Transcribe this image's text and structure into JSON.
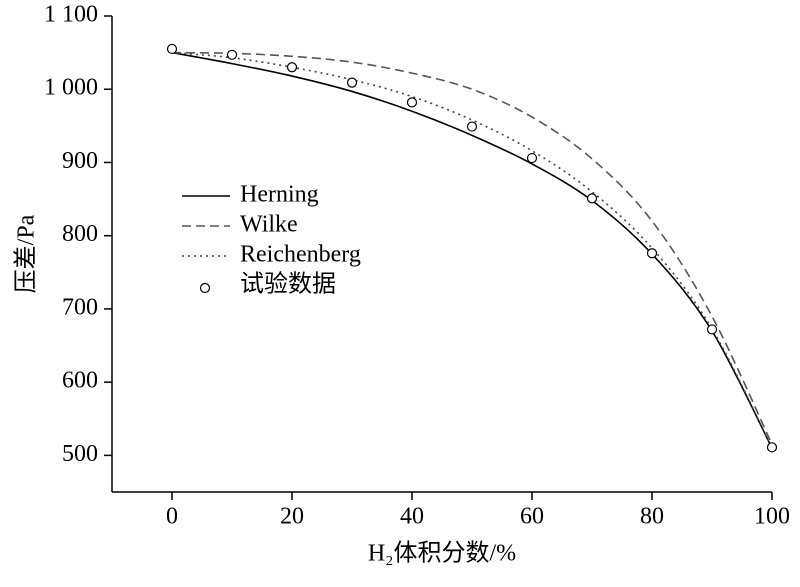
{
  "chart_data": {
    "type": "line",
    "xlabel": "H₂体积分数/%",
    "ylabel": "压差/Pa",
    "x": [
      0,
      10,
      20,
      30,
      40,
      50,
      60,
      70,
      80,
      90,
      100
    ],
    "series": [
      {
        "name": "Herning",
        "color": "#000000",
        "style": "solid",
        "values": [
          1050,
          1035,
          1018,
          997,
          970,
          937,
          898,
          848,
          775,
          670,
          510
        ]
      },
      {
        "name": "Wilke",
        "color": "#555555",
        "style": "dashed",
        "values": [
          1050,
          1049,
          1045,
          1037,
          1022,
          1000,
          962,
          905,
          820,
          690,
          515
        ]
      },
      {
        "name": "Reichenberg",
        "color": "#444444",
        "style": "dotted",
        "values": [
          1050,
          1043,
          1030,
          1013,
          990,
          958,
          916,
          860,
          783,
          673,
          510
        ]
      },
      {
        "name": "试验数据",
        "color": "#000000",
        "style": "markers",
        "values": [
          1055,
          1047,
          1030,
          1009,
          982,
          949,
          906,
          851,
          776,
          672,
          511
        ]
      }
    ],
    "xlim": [
      -10,
      100
    ],
    "xticks": [
      0,
      20,
      40,
      60,
      80,
      100
    ],
    "ylim": [
      450,
      1100
    ],
    "yticks": [
      500,
      600,
      700,
      800,
      900,
      {
        "value": 1000,
        "label": "1 000"
      },
      {
        "value": 1100,
        "label": "1 100"
      }
    ],
    "legend": "left"
  }
}
